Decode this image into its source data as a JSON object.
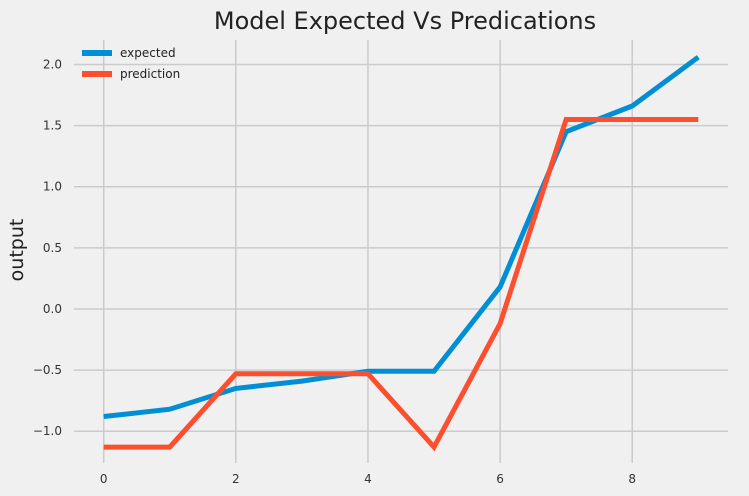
{
  "chart_data": {
    "type": "line",
    "title": "Model Expected Vs Predications",
    "xlabel": "",
    "ylabel": "output",
    "x": [
      0,
      1,
      2,
      3,
      4,
      5,
      6,
      7,
      8,
      9
    ],
    "xlim": [
      -0.45,
      9.45
    ],
    "ylim": [
      -1.26,
      2.2
    ],
    "xticks": [
      0,
      2,
      4,
      6,
      8
    ],
    "yticks": [
      -1.0,
      -0.5,
      0.0,
      0.5,
      1.0,
      1.5,
      2.0
    ],
    "ytick_labels": [
      "−1.0",
      "−0.5",
      "0.0",
      "0.5",
      "1.0",
      "1.5",
      "2.0"
    ],
    "grid": true,
    "legend_position": "top-left",
    "series": [
      {
        "name": "expected",
        "color": "#008fd5",
        "values": [
          -0.88,
          -0.82,
          -0.65,
          -0.59,
          -0.51,
          -0.51,
          0.18,
          1.45,
          1.66,
          2.06
        ]
      },
      {
        "name": "prediction",
        "color": "#fc4f30",
        "values": [
          -1.13,
          -1.13,
          -0.53,
          -0.53,
          -0.53,
          -1.13,
          -0.12,
          1.55,
          1.55,
          1.55
        ]
      }
    ]
  }
}
